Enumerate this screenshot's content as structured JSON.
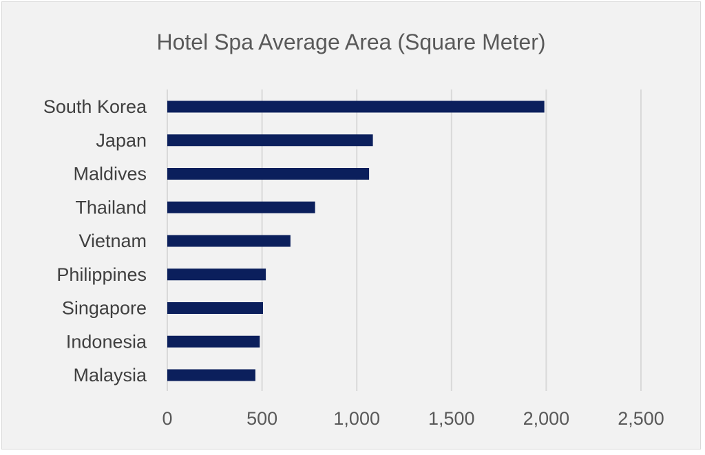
{
  "chart_data": {
    "type": "bar",
    "orientation": "horizontal",
    "title": "Hotel Spa Average Area (Square Meter)",
    "xlabel": "",
    "ylabel": "",
    "categories": [
      "South Korea",
      "Japan",
      "Maldives",
      "Thailand",
      "Vietnam",
      "Philippines",
      "Singapore",
      "Indonesia",
      "Malaysia"
    ],
    "values": [
      1990,
      1085,
      1065,
      780,
      650,
      520,
      505,
      488,
      465
    ],
    "xlim": [
      0,
      2500
    ],
    "xticks": [
      0,
      500,
      1000,
      1500,
      2000,
      2500
    ],
    "xtick_labels": [
      "0",
      "500",
      "1,000",
      "1,500",
      "2,000",
      "2,500"
    ],
    "grid": true,
    "legend": "none",
    "colors": {
      "bar": "#0b1f5c",
      "background": "#f2f2f2",
      "grid": "#d9d9d9"
    }
  }
}
